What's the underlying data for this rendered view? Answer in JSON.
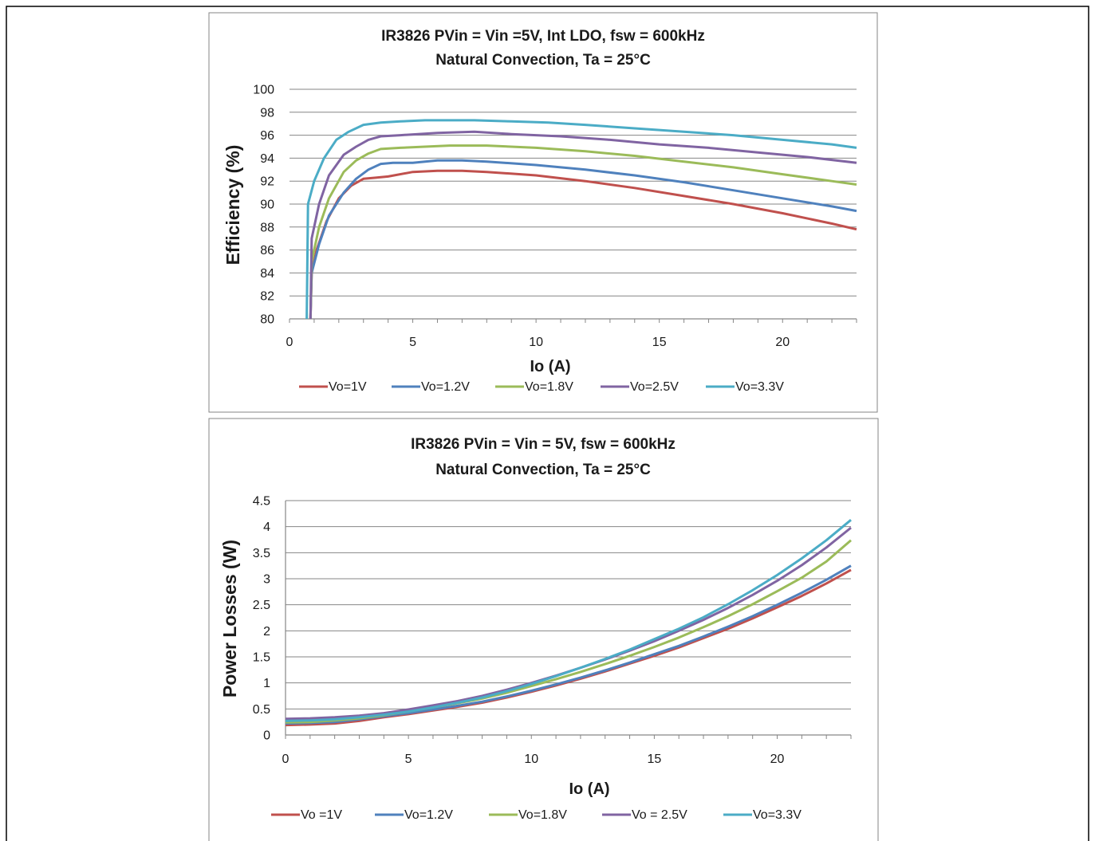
{
  "chart_data": [
    {
      "type": "line",
      "title": "IR3826 PVin = Vin =5V, Int LDO, fsw = 600kHz",
      "subtitle": "Natural Convection, Ta = 25°C",
      "xlabel": "Io (A)",
      "ylabel": "Efficiency (%)",
      "xlim": [
        0,
        23
      ],
      "ylim": [
        80,
        100
      ],
      "xticks": [
        0,
        5,
        10,
        15,
        20
      ],
      "yticks": [
        80,
        82,
        84,
        86,
        88,
        90,
        92,
        94,
        96,
        98,
        100
      ],
      "grid": "horizontal",
      "legend": "bottom",
      "series": [
        {
          "name": "Vo=1V",
          "color": "#c0504d",
          "points": [
            [
              0.85,
              80
            ],
            [
              0.9,
              84
            ],
            [
              1.1,
              86
            ],
            [
              1.5,
              88.5
            ],
            [
              2.0,
              90.5
            ],
            [
              2.5,
              91.6
            ],
            [
              3.0,
              92.2
            ],
            [
              3.5,
              92.3
            ],
            [
              4.0,
              92.4
            ],
            [
              5.0,
              92.8
            ],
            [
              6.0,
              92.9
            ],
            [
              7.0,
              92.9
            ],
            [
              8.0,
              92.8
            ],
            [
              10.0,
              92.5
            ],
            [
              12.0,
              92.0
            ],
            [
              14.0,
              91.4
            ],
            [
              16.0,
              90.7
            ],
            [
              18.0,
              90.0
            ],
            [
              20.0,
              89.2
            ],
            [
              22.0,
              88.3
            ],
            [
              23.0,
              87.8
            ]
          ]
        },
        {
          "name": "Vo=1.2V",
          "color": "#4f81bd",
          "points": [
            [
              0.85,
              80
            ],
            [
              0.9,
              84
            ],
            [
              1.2,
              86.5
            ],
            [
              1.6,
              89
            ],
            [
              2.2,
              91
            ],
            [
              2.7,
              92.2
            ],
            [
              3.2,
              93.0
            ],
            [
              3.7,
              93.5
            ],
            [
              4.2,
              93.6
            ],
            [
              5.0,
              93.6
            ],
            [
              6.0,
              93.8
            ],
            [
              7.0,
              93.8
            ],
            [
              8.0,
              93.7
            ],
            [
              10.0,
              93.4
            ],
            [
              12.0,
              93.0
            ],
            [
              14.0,
              92.5
            ],
            [
              16.0,
              91.9
            ],
            [
              18.0,
              91.2
            ],
            [
              20.0,
              90.5
            ],
            [
              22.0,
              89.8
            ],
            [
              23.0,
              89.4
            ]
          ]
        },
        {
          "name": "Vo=1.8V",
          "color": "#9bbb59",
          "points": [
            [
              0.85,
              80
            ],
            [
              0.9,
              85
            ],
            [
              1.2,
              88
            ],
            [
              1.6,
              90.5
            ],
            [
              2.2,
              92.8
            ],
            [
              2.7,
              93.8
            ],
            [
              3.2,
              94.4
            ],
            [
              3.7,
              94.8
            ],
            [
              4.5,
              94.9
            ],
            [
              5.5,
              95.0
            ],
            [
              6.5,
              95.1
            ],
            [
              8.0,
              95.1
            ],
            [
              10.0,
              94.9
            ],
            [
              12.0,
              94.6
            ],
            [
              14.0,
              94.2
            ],
            [
              16.0,
              93.7
            ],
            [
              18.0,
              93.2
            ],
            [
              20.0,
              92.6
            ],
            [
              22.0,
              92.0
            ],
            [
              23.0,
              91.7
            ]
          ]
        },
        {
          "name": "Vo=2.5V",
          "color": "#8064a2",
          "points": [
            [
              0.85,
              80
            ],
            [
              0.9,
              87
            ],
            [
              1.2,
              90
            ],
            [
              1.6,
              92.5
            ],
            [
              2.2,
              94.3
            ],
            [
              2.7,
              95.0
            ],
            [
              3.2,
              95.6
            ],
            [
              3.7,
              95.9
            ],
            [
              4.5,
              96.0
            ],
            [
              6.0,
              96.2
            ],
            [
              7.5,
              96.3
            ],
            [
              9.0,
              96.1
            ],
            [
              11.0,
              95.9
            ],
            [
              13.0,
              95.6
            ],
            [
              15.0,
              95.2
            ],
            [
              17.0,
              94.9
            ],
            [
              19.0,
              94.5
            ],
            [
              21.0,
              94.1
            ],
            [
              23.0,
              93.6
            ]
          ]
        },
        {
          "name": "Vo=3.3V",
          "color": "#4bacc6",
          "points": [
            [
              0.7,
              80
            ],
            [
              0.75,
              90
            ],
            [
              1.0,
              92
            ],
            [
              1.4,
              94
            ],
            [
              1.9,
              95.6
            ],
            [
              2.4,
              96.3
            ],
            [
              3.0,
              96.9
            ],
            [
              3.7,
              97.1
            ],
            [
              4.5,
              97.2
            ],
            [
              5.5,
              97.3
            ],
            [
              6.5,
              97.3
            ],
            [
              7.5,
              97.3
            ],
            [
              9.0,
              97.2
            ],
            [
              10.5,
              97.1
            ],
            [
              12.0,
              96.9
            ],
            [
              14.0,
              96.6
            ],
            [
              16.0,
              96.3
            ],
            [
              18.0,
              96.0
            ],
            [
              20.0,
              95.6
            ],
            [
              22.0,
              95.2
            ],
            [
              23.0,
              94.9
            ]
          ]
        }
      ]
    },
    {
      "type": "line",
      "title": "IR3826 PVin = Vin = 5V, fsw = 600kHz",
      "subtitle": "Natural Convection, Ta = 25°C",
      "xlabel": "Io (A)",
      "ylabel": "Power Losses (W)",
      "xlim": [
        0,
        23
      ],
      "ylim": [
        0,
        4.5
      ],
      "xticks": [
        0,
        5,
        10,
        15,
        20
      ],
      "yticks": [
        0,
        0.5,
        1,
        1.5,
        2,
        2.5,
        3,
        3.5,
        4,
        4.5
      ],
      "grid": "horizontal",
      "legend": "bottom",
      "series": [
        {
          "name": "Vo =1V",
          "color": "#c0504d",
          "points": [
            [
              0,
              0.19
            ],
            [
              1,
              0.2
            ],
            [
              2,
              0.22
            ],
            [
              3,
              0.27
            ],
            [
              4,
              0.34
            ],
            [
              5,
              0.4
            ],
            [
              6,
              0.47
            ],
            [
              7,
              0.54
            ],
            [
              8,
              0.62
            ],
            [
              9,
              0.72
            ],
            [
              10,
              0.83
            ],
            [
              11,
              0.95
            ],
            [
              12,
              1.08
            ],
            [
              13,
              1.22
            ],
            [
              14,
              1.37
            ],
            [
              15,
              1.52
            ],
            [
              16,
              1.68
            ],
            [
              17,
              1.86
            ],
            [
              18,
              2.04
            ],
            [
              19,
              2.24
            ],
            [
              20,
              2.45
            ],
            [
              21,
              2.67
            ],
            [
              22,
              2.91
            ],
            [
              23,
              3.17
            ]
          ]
        },
        {
          "name": "Vo=1.2V",
          "color": "#4f81bd",
          "points": [
            [
              0,
              0.22
            ],
            [
              1,
              0.23
            ],
            [
              2,
              0.25
            ],
            [
              3,
              0.3
            ],
            [
              4,
              0.36
            ],
            [
              5,
              0.42
            ],
            [
              6,
              0.49
            ],
            [
              7,
              0.56
            ],
            [
              8,
              0.64
            ],
            [
              9,
              0.74
            ],
            [
              10,
              0.85
            ],
            [
              11,
              0.97
            ],
            [
              12,
              1.1
            ],
            [
              13,
              1.24
            ],
            [
              14,
              1.39
            ],
            [
              15,
              1.55
            ],
            [
              16,
              1.71
            ],
            [
              17,
              1.89
            ],
            [
              18,
              2.08
            ],
            [
              19,
              2.28
            ],
            [
              20,
              2.5
            ],
            [
              21,
              2.73
            ],
            [
              22,
              2.98
            ],
            [
              23,
              3.25
            ]
          ]
        },
        {
          "name": "Vo=1.8V",
          "color": "#9bbb59",
          "points": [
            [
              0,
              0.24
            ],
            [
              1,
              0.25
            ],
            [
              2,
              0.28
            ],
            [
              3,
              0.32
            ],
            [
              4,
              0.38
            ],
            [
              5,
              0.45
            ],
            [
              6,
              0.53
            ],
            [
              7,
              0.61
            ],
            [
              8,
              0.7
            ],
            [
              9,
              0.81
            ],
            [
              10,
              0.94
            ],
            [
              11,
              1.07
            ],
            [
              12,
              1.21
            ],
            [
              13,
              1.36
            ],
            [
              14,
              1.52
            ],
            [
              15,
              1.69
            ],
            [
              16,
              1.87
            ],
            [
              17,
              2.07
            ],
            [
              18,
              2.28
            ],
            [
              19,
              2.51
            ],
            [
              20,
              2.76
            ],
            [
              21,
              3.02
            ],
            [
              22,
              3.33
            ],
            [
              23,
              3.74
            ]
          ]
        },
        {
          "name": "Vo = 2.5V",
          "color": "#8064a2",
          "points": [
            [
              0,
              0.31
            ],
            [
              1,
              0.32
            ],
            [
              2,
              0.34
            ],
            [
              3,
              0.37
            ],
            [
              4,
              0.42
            ],
            [
              5,
              0.49
            ],
            [
              6,
              0.57
            ],
            [
              7,
              0.65
            ],
            [
              8,
              0.75
            ],
            [
              9,
              0.87
            ],
            [
              10,
              1.0
            ],
            [
              11,
              1.14
            ],
            [
              12,
              1.29
            ],
            [
              13,
              1.45
            ],
            [
              14,
              1.62
            ],
            [
              15,
              1.8
            ],
            [
              16,
              2.0
            ],
            [
              17,
              2.21
            ],
            [
              18,
              2.44
            ],
            [
              19,
              2.69
            ],
            [
              20,
              2.96
            ],
            [
              21,
              3.26
            ],
            [
              22,
              3.6
            ],
            [
              23,
              3.98
            ]
          ]
        },
        {
          "name": "Vo=3.3V",
          "color": "#4bacc6",
          "points": [
            [
              0,
              0.27
            ],
            [
              1,
              0.28
            ],
            [
              2,
              0.3
            ],
            [
              3,
              0.34
            ],
            [
              4,
              0.39
            ],
            [
              5,
              0.45
            ],
            [
              6,
              0.53
            ],
            [
              7,
              0.62
            ],
            [
              8,
              0.72
            ],
            [
              9,
              0.84
            ],
            [
              10,
              0.98
            ],
            [
              11,
              1.13
            ],
            [
              12,
              1.29
            ],
            [
              13,
              1.46
            ],
            [
              14,
              1.64
            ],
            [
              15,
              1.84
            ],
            [
              16,
              2.04
            ],
            [
              17,
              2.26
            ],
            [
              18,
              2.51
            ],
            [
              19,
              2.78
            ],
            [
              20,
              3.07
            ],
            [
              21,
              3.39
            ],
            [
              22,
              3.74
            ],
            [
              23,
              4.13
            ]
          ]
        }
      ]
    }
  ]
}
